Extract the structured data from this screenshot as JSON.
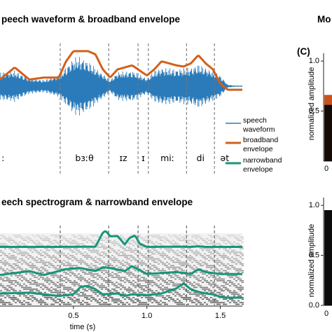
{
  "colors": {
    "waveform": "#2b7bba",
    "broadband": "#d2601a",
    "narrowband": "#16967a",
    "marker": "#777777"
  },
  "panels": {
    "top_title": "peech waveform & broadband envelope",
    "bottom_title": "eech spectrogram & narrowband envelope",
    "right_title": "Mo",
    "right_panel_label": "(C)"
  },
  "legend": [
    {
      "key": "speech-waveform",
      "lines": [
        "speech",
        "waveform"
      ]
    },
    {
      "key": "broadband-envelope",
      "lines": [
        "broadband",
        "envelope"
      ]
    },
    {
      "key": "narrowband-envelope",
      "lines": [
        "narrowband",
        "envelope"
      ]
    }
  ],
  "chart_data": [
    {
      "type": "line",
      "title": "peech waveform & broadband envelope",
      "xlim": [
        0.0,
        1.65
      ],
      "phoneme_boundaries": [
        0.41,
        0.74,
        0.94,
        1.01,
        1.27,
        1.46
      ],
      "phoneme_labels": [
        {
          "text": ":",
          "x": 0.02
        },
        {
          "text": "bɜːθ",
          "x": 0.575
        },
        {
          "text": "ɪz",
          "x": 0.84
        },
        {
          "text": "ɪ",
          "x": 0.975
        },
        {
          "text": "miː",
          "x": 1.14
        },
        {
          "text": "di",
          "x": 1.365
        },
        {
          "text": "ət",
          "x": 1.53
        }
      ],
      "series": [
        {
          "name": "speech waveform",
          "x": [
            0.0,
            0.1,
            0.2,
            0.3,
            0.4,
            0.5,
            0.55,
            0.6,
            0.7,
            0.75,
            0.8,
            0.9,
            1.0,
            1.05,
            1.1,
            1.2,
            1.3,
            1.35,
            1.4,
            1.5,
            1.55,
            1.6
          ],
          "values": [
            0.45,
            0.5,
            0.25,
            0.2,
            0.35,
            0.9,
            0.95,
            0.8,
            0.4,
            0.2,
            0.45,
            0.5,
            0.25,
            0.5,
            0.6,
            0.55,
            0.6,
            0.7,
            0.6,
            0.35,
            0.05,
            0.02
          ]
        },
        {
          "name": "broadband envelope",
          "x": [
            0.0,
            0.1,
            0.15,
            0.2,
            0.3,
            0.4,
            0.45,
            0.5,
            0.6,
            0.65,
            0.7,
            0.75,
            0.8,
            0.9,
            1.0,
            1.05,
            1.1,
            1.2,
            1.25,
            1.3,
            1.35,
            1.4,
            1.45,
            1.5,
            1.55,
            1.6
          ],
          "values": [
            0.3,
            0.6,
            0.45,
            0.3,
            0.35,
            0.35,
            0.75,
            1.0,
            1.0,
            0.92,
            0.55,
            0.35,
            0.55,
            0.65,
            0.4,
            0.55,
            0.75,
            0.65,
            0.62,
            0.7,
            0.9,
            0.7,
            0.55,
            0.2,
            0.05,
            0.05
          ]
        }
      ]
    },
    {
      "type": "line",
      "title": "eech spectrogram & narrowband envelope",
      "xlabel": "time (s)",
      "xlim": [
        0.0,
        1.65
      ],
      "xticks": [
        "0.5",
        "1.0",
        "1.5"
      ],
      "xtick_values": [
        0.5,
        1.0,
        1.5
      ],
      "phoneme_boundaries": [
        0.41,
        0.74,
        0.94,
        1.01,
        1.27,
        1.46
      ],
      "series": [
        {
          "name": "narrowband envelope (high band)",
          "x": [
            0.0,
            0.4,
            0.65,
            0.7,
            0.72,
            0.75,
            0.8,
            0.85,
            0.88,
            0.92,
            0.95,
            1.0,
            1.05,
            1.2,
            1.3,
            1.35,
            1.4,
            1.45,
            1.6
          ],
          "values": [
            0.12,
            0.12,
            0.13,
            0.9,
            1.0,
            0.7,
            0.72,
            0.25,
            0.6,
            0.75,
            0.3,
            0.12,
            0.12,
            0.13,
            0.12,
            0.15,
            0.12,
            0.12,
            0.12
          ]
        },
        {
          "name": "narrowband envelope (mid band)",
          "x": [
            0.0,
            0.2,
            0.3,
            0.45,
            0.55,
            0.65,
            0.7,
            0.75,
            0.85,
            0.9,
            1.0,
            1.1,
            1.2,
            1.3,
            1.35,
            1.4,
            1.5,
            1.6
          ],
          "values": [
            0.15,
            0.35,
            0.15,
            0.45,
            0.5,
            0.35,
            0.55,
            0.5,
            0.35,
            0.6,
            0.2,
            0.25,
            0.3,
            0.2,
            0.45,
            0.3,
            0.2,
            0.2
          ]
        },
        {
          "name": "narrowband envelope (low band)",
          "x": [
            0.0,
            0.2,
            0.4,
            0.5,
            0.55,
            0.6,
            0.65,
            0.7,
            0.8,
            0.85,
            0.9,
            1.0,
            1.1,
            1.2,
            1.25,
            1.3,
            1.35,
            1.4,
            1.45,
            1.5,
            1.55,
            1.6
          ],
          "values": [
            0.35,
            0.4,
            0.2,
            0.3,
            0.75,
            0.8,
            0.6,
            0.3,
            0.35,
            0.2,
            0.3,
            0.25,
            0.35,
            0.65,
            0.95,
            0.6,
            0.45,
            0.35,
            0.3,
            0.15,
            0.1,
            0.1
          ]
        }
      ]
    },
    {
      "type": "bar",
      "title": "Mo",
      "panel_label": "(C)",
      "ylabel": "normalized amplitude",
      "yticks": [
        "0.5",
        "1.0"
      ],
      "ytick_values": [
        0.5,
        1.0
      ],
      "xticks_visible": [
        "0"
      ],
      "ylim": [
        0,
        1.05
      ],
      "bar_value": 0.66
    },
    {
      "type": "bar",
      "ylabel": "normalized amplitude",
      "yticks": [
        "0.0",
        "0.5",
        "1.0"
      ],
      "ytick_values": [
        0.0,
        0.5,
        1.0
      ],
      "xticks_visible": [
        "0"
      ],
      "ylim": [
        0,
        1.05
      ]
    }
  ]
}
